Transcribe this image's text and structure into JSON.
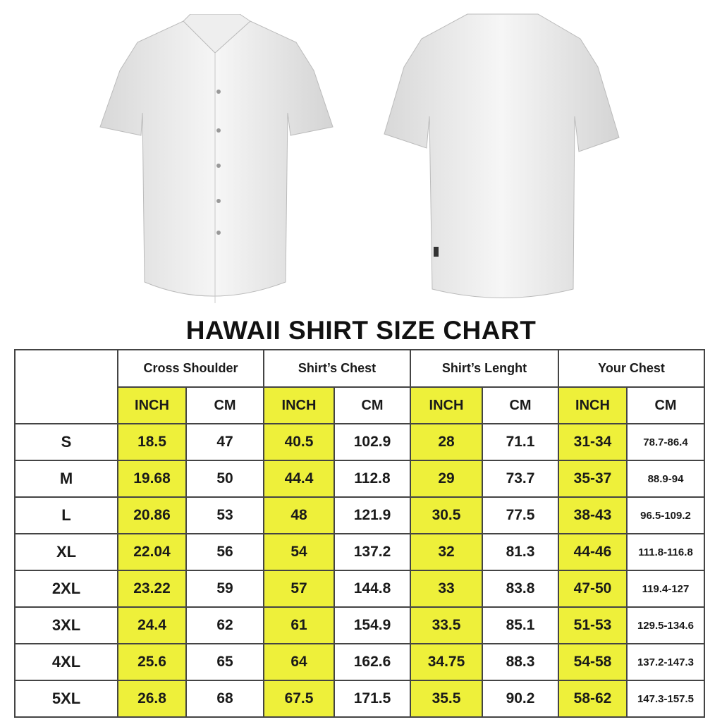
{
  "title": "HAWAII SHIRT SIZE CHART",
  "groups": [
    "Cross Shoulder",
    "Shirt’s Chest",
    "Shirt’s Lenght",
    "Your Chest"
  ],
  "units": {
    "inch": "INCH",
    "cm": "CM"
  },
  "colors": {
    "highlight": "#eef03a",
    "border": "#444444"
  },
  "rows": [
    {
      "size": "S",
      "values": [
        "18.5",
        "47",
        "40.5",
        "102.9",
        "28",
        "71.1",
        "31-34",
        "78.7-86.4"
      ]
    },
    {
      "size": "M",
      "values": [
        "19.68",
        "50",
        "44.4",
        "112.8",
        "29",
        "73.7",
        "35-37",
        "88.9-94"
      ]
    },
    {
      "size": "L",
      "values": [
        "20.86",
        "53",
        "48",
        "121.9",
        "30.5",
        "77.5",
        "38-43",
        "96.5-109.2"
      ]
    },
    {
      "size": "XL",
      "values": [
        "22.04",
        "56",
        "54",
        "137.2",
        "32",
        "81.3",
        "44-46",
        "111.8-116.8"
      ]
    },
    {
      "size": "2XL",
      "values": [
        "23.22",
        "59",
        "57",
        "144.8",
        "33",
        "83.8",
        "47-50",
        "119.4-127"
      ]
    },
    {
      "size": "3XL",
      "values": [
        "24.4",
        "62",
        "61",
        "154.9",
        "33.5",
        "85.1",
        "51-53",
        "129.5-134.6"
      ]
    },
    {
      "size": "4XL",
      "values": [
        "25.6",
        "65",
        "64",
        "162.6",
        "34.75",
        "88.3",
        "54-58",
        "137.2-147.3"
      ]
    },
    {
      "size": "5XL",
      "values": [
        "26.8",
        "68",
        "67.5",
        "171.5",
        "35.5",
        "90.2",
        "58-62",
        "147.3-157.5"
      ]
    }
  ]
}
